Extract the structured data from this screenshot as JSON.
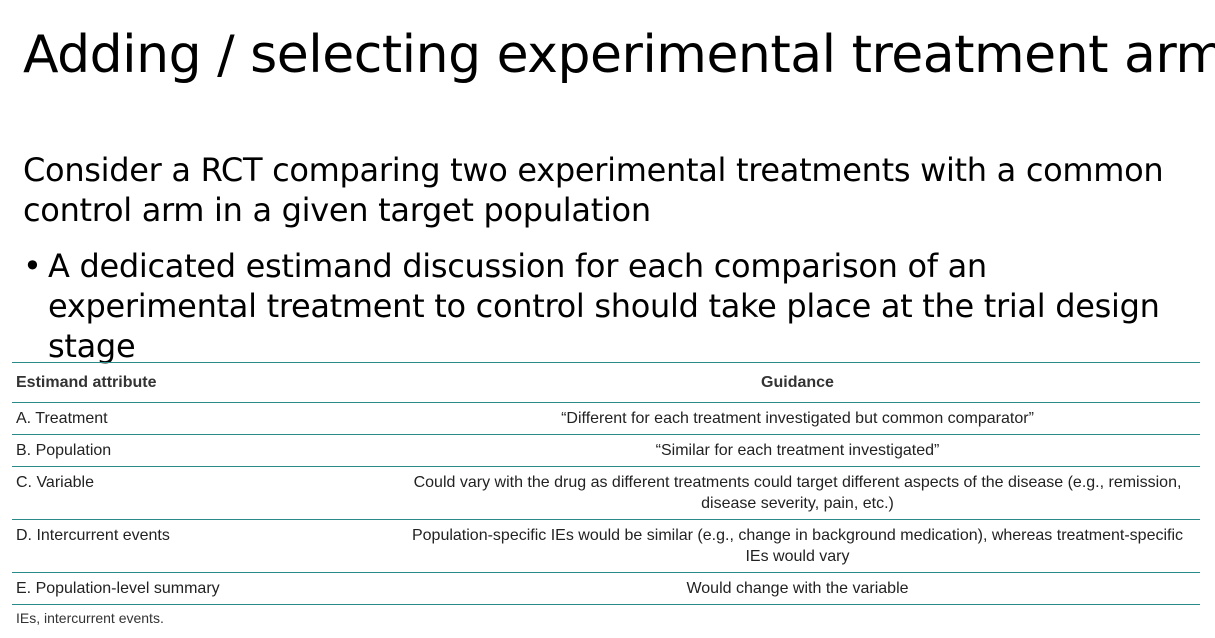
{
  "slide": {
    "title": "Adding / selecting experimental treatment arms",
    "intro": "Consider a RCT comparing two experimental treatments with a common control arm in a given target population",
    "bullet_symbol": "•",
    "bullet": "A dedicated estimand discussion for each comparison of an experimental treatment to control should take place at the trial design stage"
  },
  "table": {
    "headers": {
      "attribute": "Estimand attribute",
      "guidance": "Guidance"
    },
    "rows": [
      {
        "attribute": "A. Treatment",
        "guidance": "“Different for each treatment investigated but common comparator”"
      },
      {
        "attribute": "B. Population",
        "guidance": "“Similar for each treatment investigated”"
      },
      {
        "attribute": "C. Variable",
        "guidance": "Could vary with the drug as different treatments could target different aspects of the disease (e.g., remission, disease severity, pain, etc.)"
      },
      {
        "attribute": "D. Intercurrent events",
        "guidance": "Population-specific IEs would be similar (e.g., change in background medication), whereas treatment-specific IEs would vary"
      },
      {
        "attribute": "E. Population-level summary",
        "guidance": "Would change with the variable"
      }
    ],
    "footnote": "IEs, intercurrent events.",
    "rule_color": "#2a8a8a"
  }
}
